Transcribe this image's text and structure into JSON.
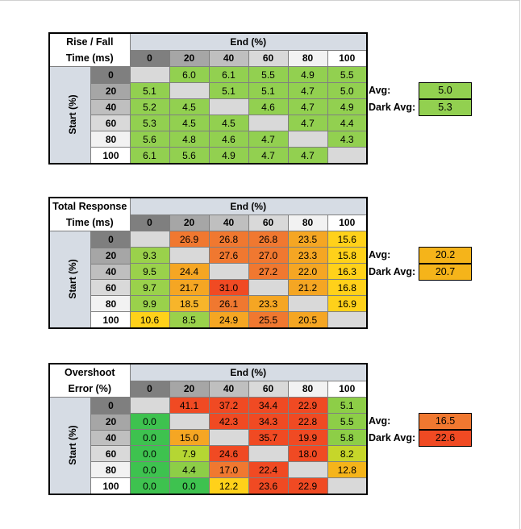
{
  "table_columns": [
    "0",
    "20",
    "40",
    "60",
    "80",
    "100"
  ],
  "table_rows": [
    "0",
    "20",
    "40",
    "60",
    "80",
    "100"
  ],
  "end_label": "End (%)",
  "start_label": "Start (%)",
  "avg_label": "Avg:",
  "dark_avg_label": "Dark Avg:",
  "tables": [
    {
      "title_line1": "Rise / Fall",
      "title_line2": "Time (ms)",
      "avg": "5.0",
      "dark_avg": "5.3",
      "avg_color": "#92d050",
      "dark_avg_color": "#92d050",
      "rows": [
        [
          "",
          "6.0",
          "6.1",
          "5.5",
          "4.9",
          "5.5"
        ],
        [
          "5.1",
          "",
          "5.1",
          "5.1",
          "4.7",
          "5.0"
        ],
        [
          "5.2",
          "4.5",
          "",
          "4.6",
          "4.7",
          "4.9"
        ],
        [
          "5.3",
          "4.5",
          "4.5",
          "",
          "4.7",
          "4.4"
        ],
        [
          "5.6",
          "4.8",
          "4.6",
          "4.7",
          "",
          "4.3"
        ],
        [
          "6.1",
          "5.6",
          "4.9",
          "4.7",
          "4.7",
          ""
        ]
      ],
      "colors": [
        [
          "#d9d9d9",
          "#92d050",
          "#92d050",
          "#92d050",
          "#92d050",
          "#92d050"
        ],
        [
          "#92d050",
          "#d9d9d9",
          "#92d050",
          "#92d050",
          "#92d050",
          "#92d050"
        ],
        [
          "#92d050",
          "#92d050",
          "#d9d9d9",
          "#92d050",
          "#92d050",
          "#92d050"
        ],
        [
          "#92d050",
          "#92d050",
          "#92d050",
          "#d9d9d9",
          "#92d050",
          "#92d050"
        ],
        [
          "#92d050",
          "#92d050",
          "#92d050",
          "#92d050",
          "#d9d9d9",
          "#92d050"
        ],
        [
          "#92d050",
          "#92d050",
          "#92d050",
          "#92d050",
          "#92d050",
          "#d9d9d9"
        ]
      ]
    },
    {
      "title_line1": "Total Response",
      "title_line2": "Time (ms)",
      "avg": "20.2",
      "dark_avg": "20.7",
      "avg_color": "#f5b41a",
      "dark_avg_color": "#f5b41a",
      "rows": [
        [
          "",
          "26.9",
          "26.8",
          "26.8",
          "23.5",
          "15.6"
        ],
        [
          "9.3",
          "",
          "27.6",
          "27.0",
          "23.3",
          "15.8"
        ],
        [
          "9.5",
          "24.4",
          "",
          "27.2",
          "22.0",
          "16.3"
        ],
        [
          "9.7",
          "21.7",
          "31.0",
          "",
          "21.2",
          "16.8"
        ],
        [
          "9.9",
          "18.5",
          "26.1",
          "23.3",
          "",
          "16.9"
        ],
        [
          "10.6",
          "8.5",
          "24.9",
          "25.5",
          "20.5",
          ""
        ]
      ],
      "colors": [
        [
          "#d9d9d9",
          "#f07830",
          "#f07830",
          "#f07830",
          "#f5a623",
          "#ffd11a"
        ],
        [
          "#9ad14b",
          "#d9d9d9",
          "#f07830",
          "#f07830",
          "#f5a623",
          "#ffd11a"
        ],
        [
          "#9ad14b",
          "#f5a623",
          "#d9d9d9",
          "#f07830",
          "#f5a623",
          "#ffd11a"
        ],
        [
          "#9ad14b",
          "#f5a623",
          "#f04a23",
          "#d9d9d9",
          "#f5a623",
          "#ffd11a"
        ],
        [
          "#9ad14b",
          "#f7b52a",
          "#f07830",
          "#f5a623",
          "#d9d9d9",
          "#ffd11a"
        ],
        [
          "#ffd11a",
          "#9ad14b",
          "#f5a623",
          "#f07830",
          "#f5a623",
          "#d9d9d9"
        ]
      ]
    },
    {
      "title_line1": "Overshoot",
      "title_line2": "Error (%)",
      "avg": "16.5",
      "dark_avg": "22.6",
      "avg_color": "#f07830",
      "dark_avg_color": "#f04a23",
      "rows": [
        [
          "",
          "41.1",
          "37.2",
          "34.4",
          "22.9",
          "5.1"
        ],
        [
          "0.0",
          "",
          "42.3",
          "34.3",
          "22.8",
          "5.5"
        ],
        [
          "0.0",
          "15.0",
          "",
          "35.7",
          "19.9",
          "5.8"
        ],
        [
          "0.0",
          "7.9",
          "24.6",
          "",
          "18.0",
          "8.2"
        ],
        [
          "0.0",
          "4.4",
          "17.0",
          "22.4",
          "",
          "12.8"
        ],
        [
          "0.0",
          "0.0",
          "12.2",
          "23.6",
          "22.9",
          ""
        ]
      ],
      "colors": [
        [
          "#d9d9d9",
          "#f04a23",
          "#f04a23",
          "#f04a23",
          "#f04a23",
          "#8dce47"
        ],
        [
          "#3ec24f",
          "#d9d9d9",
          "#f04a23",
          "#f04a23",
          "#f04a23",
          "#8dce47"
        ],
        [
          "#3ec24f",
          "#f5a623",
          "#d9d9d9",
          "#f04a23",
          "#f04a23",
          "#8dce47"
        ],
        [
          "#3ec24f",
          "#b5d633",
          "#f04a23",
          "#d9d9d9",
          "#f04a23",
          "#c6d62a"
        ],
        [
          "#3ec24f",
          "#8dce47",
          "#f07830",
          "#f04a23",
          "#d9d9d9",
          "#f5b41a"
        ],
        [
          "#3ec24f",
          "#3ec24f",
          "#ffd11a",
          "#f04a23",
          "#f04a23",
          "#d9d9d9"
        ]
      ]
    }
  ],
  "header_col_colors": [
    "#7f7f7f",
    "#a6a6a6",
    "#bfbfbf",
    "#d9d9d9",
    "#f2f2f2",
    "#ffffff"
  ]
}
